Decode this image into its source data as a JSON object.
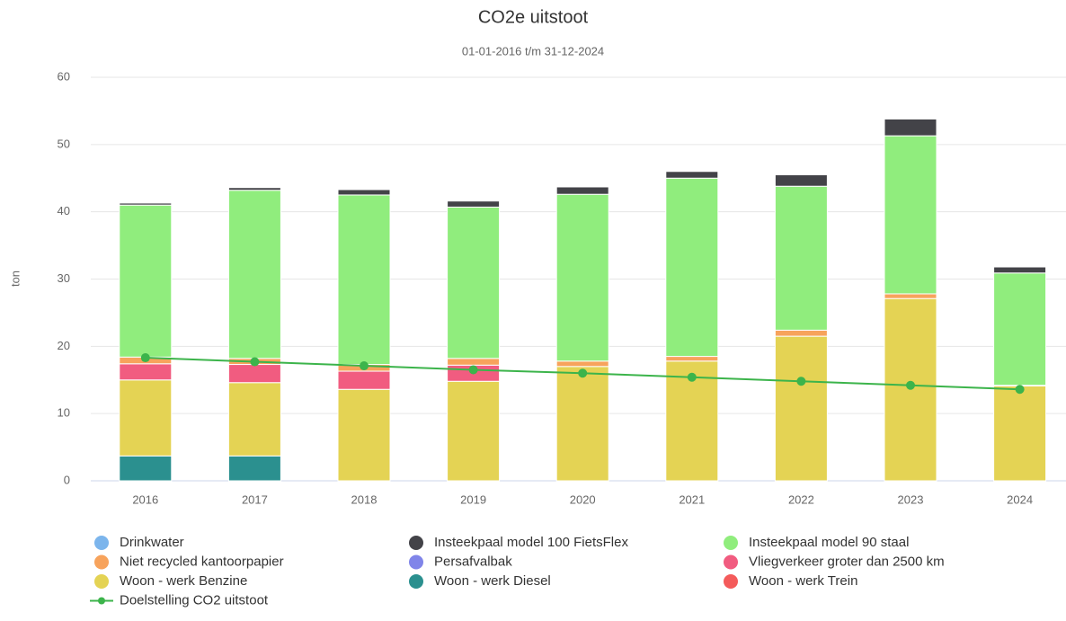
{
  "chart_data": {
    "type": "bar",
    "stacked": true,
    "title": "CO2e uitstoot",
    "subtitle": "01-01-2016 t/m 31-12-2024",
    "y_label": "ton",
    "categories": [
      "2016",
      "2017",
      "2018",
      "2019",
      "2020",
      "2021",
      "2022",
      "2023",
      "2024"
    ],
    "ylim": [
      0,
      60
    ],
    "yticks": [
      0,
      10,
      20,
      30,
      40,
      50,
      60
    ],
    "grid": true,
    "series": [
      {
        "name": "Drinkwater",
        "color": "#7cb5ec",
        "values": [
          0,
          0,
          0,
          0,
          0,
          0,
          0,
          0,
          0
        ]
      },
      {
        "name": "Insteekpaal model 100 FietsFlex",
        "color": "#434348",
        "values": [
          0.3,
          0.4,
          0.8,
          0.9,
          1.1,
          1.0,
          1.7,
          2.5,
          0.9
        ]
      },
      {
        "name": "Insteekpaal model 90 staal",
        "color": "#90ed7d",
        "values": [
          22.6,
          25.0,
          25.2,
          22.5,
          24.8,
          26.5,
          21.4,
          23.5,
          16.7
        ]
      },
      {
        "name": "Niet recycled kantoorpapier",
        "color": "#f7a35c",
        "values": [
          1.0,
          0.9,
          1.0,
          1.0,
          0.8,
          0.7,
          0.9,
          0.7,
          0.1
        ]
      },
      {
        "name": "Persafvalbak",
        "color": "#8085e9",
        "values": [
          0,
          0,
          0,
          0,
          0,
          0,
          0,
          0,
          0
        ]
      },
      {
        "name": "Vliegverkeer groter dan 2500 km",
        "color": "#f15c80",
        "values": [
          2.4,
          2.7,
          2.7,
          2.4,
          0,
          0,
          0,
          0,
          0
        ]
      },
      {
        "name": "Woon - werk Benzine",
        "color": "#e4d354",
        "values": [
          11.3,
          10.9,
          13.6,
          14.8,
          17.0,
          17.8,
          21.5,
          27.1,
          14.1
        ]
      },
      {
        "name": "Woon - werk Diesel",
        "color": "#2b908f",
        "values": [
          3.7,
          3.7,
          0,
          0,
          0,
          0,
          0,
          0,
          0
        ]
      },
      {
        "name": "Woon - werk Trein",
        "color": "#f45b5b",
        "values": [
          0,
          0,
          0,
          0,
          0,
          0,
          0,
          0,
          0
        ]
      },
      {
        "name": "Doelstelling CO2 uitstoot",
        "type": "line",
        "color": "#3cb44b",
        "values": [
          18.3,
          17.7,
          17.1,
          16.5,
          16.0,
          15.4,
          14.8,
          14.2,
          13.6
        ]
      }
    ]
  }
}
